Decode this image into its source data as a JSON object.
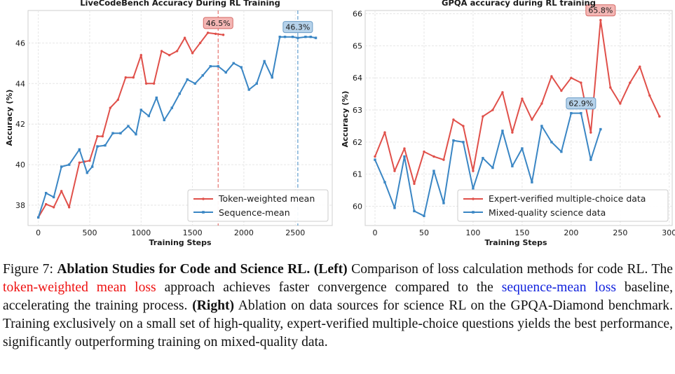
{
  "chart_data": [
    {
      "type": "line",
      "title": "LiveCodeBench Accuracy During RL Training",
      "xlabel": "Training Steps",
      "ylabel": "Accuracy (%)",
      "xlim": [
        -100,
        2860
      ],
      "ylim": [
        37.0,
        47.6
      ],
      "xticks": [
        0,
        500,
        1000,
        1500,
        2000,
        2500
      ],
      "yticks": [
        38,
        40,
        42,
        44,
        46
      ],
      "grid": true,
      "legend_position": "lower-right",
      "series": [
        {
          "name": "Token-weighted mean",
          "color": "#e0504a",
          "x": [
            0,
            75,
            150,
            225,
            300,
            400,
            450,
            500,
            575,
            625,
            700,
            775,
            850,
            925,
            1000,
            1050,
            1125,
            1200,
            1275,
            1350,
            1425,
            1500,
            1575,
            1650,
            1725,
            1800
          ],
          "y": [
            37.4,
            38.05,
            37.9,
            38.7,
            37.9,
            40.1,
            40.15,
            40.2,
            41.4,
            41.4,
            42.8,
            43.2,
            44.3,
            44.3,
            45.4,
            44.0,
            44.0,
            45.6,
            45.4,
            45.6,
            46.25,
            45.5,
            46.0,
            46.5,
            46.45,
            46.4
          ]
        },
        {
          "name": "Sequence-mean",
          "color": "#3a86c4",
          "x": [
            0,
            75,
            150,
            225,
            300,
            400,
            475,
            525,
            575,
            650,
            725,
            800,
            875,
            950,
            1000,
            1075,
            1150,
            1225,
            1300,
            1375,
            1450,
            1525,
            1600,
            1675,
            1750,
            1825,
            1900,
            1975,
            2050,
            2125,
            2200,
            2275,
            2350,
            2400,
            2475,
            2525,
            2600,
            2650,
            2700
          ],
          "y": [
            37.4,
            38.6,
            38.4,
            39.9,
            40.0,
            40.75,
            39.6,
            39.9,
            40.9,
            40.95,
            41.55,
            41.55,
            41.9,
            41.5,
            42.7,
            42.4,
            43.3,
            42.2,
            42.8,
            43.5,
            44.2,
            44.0,
            44.4,
            44.85,
            44.85,
            44.55,
            45.0,
            44.8,
            43.7,
            44.0,
            45.1,
            44.3,
            46.3,
            46.3,
            46.3,
            46.25,
            46.3,
            46.3,
            46.25
          ]
        }
      ],
      "vlines": [
        {
          "x": 1750,
          "color": "#e0504a"
        },
        {
          "x": 2525,
          "color": "#3a86c4"
        }
      ],
      "annotations": [
        {
          "text": "46.5%",
          "x": 1750,
          "y": 46.5,
          "series": "Token-weighted mean"
        },
        {
          "text": "46.3%",
          "x": 2525,
          "y": 46.3,
          "series": "Sequence-mean"
        }
      ]
    },
    {
      "type": "line",
      "title": "GPQA accuracy during RL training",
      "xlabel": "Training Steps",
      "ylabel": "Accuracy (%)",
      "xlim": [
        -10,
        303
      ],
      "ylim": [
        59.4,
        66.1
      ],
      "xticks": [
        0,
        50,
        100,
        150,
        200,
        250,
        300
      ],
      "yticks": [
        60,
        61,
        62,
        63,
        64,
        65,
        66
      ],
      "grid": true,
      "legend_position": "lower-right",
      "series": [
        {
          "name": "Expert-verified multiple-choice data",
          "color": "#e0504a",
          "x": [
            0,
            10,
            20,
            30,
            40,
            50,
            60,
            70,
            80,
            90,
            100,
            110,
            120,
            130,
            140,
            150,
            160,
            170,
            180,
            190,
            200,
            210,
            220,
            230,
            240,
            250,
            260,
            270,
            280,
            290
          ],
          "y": [
            61.55,
            62.3,
            61.1,
            61.8,
            60.7,
            61.7,
            61.55,
            61.45,
            62.7,
            62.5,
            61.1,
            62.8,
            63.0,
            63.55,
            62.3,
            63.35,
            62.7,
            63.2,
            64.05,
            63.6,
            64.0,
            63.85,
            62.3,
            65.8,
            63.7,
            63.2,
            63.85,
            64.35,
            63.45,
            62.8
          ]
        },
        {
          "name": "Mixed-quality science data",
          "color": "#3a86c4",
          "x": [
            0,
            10,
            20,
            30,
            40,
            50,
            60,
            70,
            80,
            90,
            100,
            110,
            120,
            130,
            140,
            150,
            160,
            170,
            180,
            190,
            200,
            210,
            220,
            230
          ],
          "y": [
            61.45,
            60.75,
            59.95,
            61.55,
            59.85,
            59.7,
            61.1,
            60.1,
            62.05,
            62.0,
            60.55,
            61.5,
            61.2,
            62.35,
            61.25,
            61.8,
            60.75,
            62.5,
            62.0,
            61.7,
            62.9,
            62.9,
            61.45,
            62.4
          ]
        }
      ],
      "annotations": [
        {
          "text": "65.8%",
          "x": 230,
          "y": 65.8,
          "series": "Expert-verified multiple-choice data"
        },
        {
          "text": "62.9%",
          "x": 210,
          "y": 62.9,
          "series": "Mixed-quality science data"
        }
      ]
    }
  ],
  "caption": {
    "label": "Figure 7:",
    "bold_title": "Ablation Studies for Code and Science RL.",
    "left_tag": "(Left)",
    "text1": "Comparison of loss calculation methods for code RL. The",
    "red_link": "token-weighted mean loss",
    "text2": "approach achieves faster convergence compared to the",
    "blue_link": "sequence-mean loss",
    "text3": "baseline, accelerating the training process.",
    "right_tag": "(Right)",
    "text4": "Ablation on data sources for science RL on the GPQA-Diamond benchmark. Training exclusively on a small set of high-quality, expert-verified multiple-choice questions yields the best performance, significantly outperforming training on mixed-quality data."
  }
}
